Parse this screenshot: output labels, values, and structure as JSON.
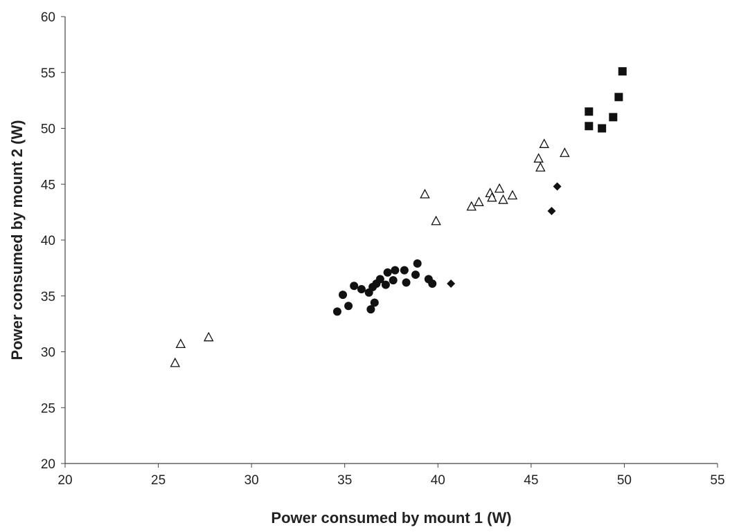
{
  "chart_data": {
    "type": "scatter",
    "title": "",
    "xlabel": "Power consumed by mount 1 (W)",
    "ylabel": "Power consumed by mount 2 (W)",
    "xlim": [
      20,
      55
    ],
    "ylim": [
      20,
      60
    ],
    "xticks": [
      "20",
      "25",
      "30",
      "35",
      "40",
      "45",
      "50",
      "55"
    ],
    "yticks": [
      "20",
      "25",
      "30",
      "35",
      "40",
      "45",
      "50",
      "55",
      "60"
    ],
    "grid": false,
    "legend": "none",
    "series": [
      {
        "marker": "open-triangle",
        "color": "#111111",
        "points": [
          [
            25.9,
            29.0
          ],
          [
            26.2,
            30.7
          ],
          [
            27.7,
            31.3
          ],
          [
            39.3,
            44.1
          ],
          [
            39.9,
            41.7
          ],
          [
            41.8,
            43.0
          ],
          [
            42.2,
            43.4
          ],
          [
            42.8,
            44.2
          ],
          [
            42.9,
            43.8
          ],
          [
            43.3,
            44.6
          ],
          [
            43.5,
            43.6
          ],
          [
            44.0,
            44.0
          ],
          [
            45.4,
            47.3
          ],
          [
            45.5,
            46.5
          ],
          [
            45.7,
            48.6
          ],
          [
            46.8,
            47.8
          ]
        ]
      },
      {
        "marker": "filled-circle",
        "color": "#111111",
        "points": [
          [
            34.6,
            33.6
          ],
          [
            34.9,
            35.1
          ],
          [
            35.2,
            34.1
          ],
          [
            35.5,
            35.9
          ],
          [
            35.9,
            35.6
          ],
          [
            36.3,
            35.3
          ],
          [
            36.4,
            33.8
          ],
          [
            36.5,
            35.8
          ],
          [
            36.6,
            34.4
          ],
          [
            36.7,
            36.1
          ],
          [
            36.9,
            36.5
          ],
          [
            37.2,
            36.0
          ],
          [
            37.3,
            37.1
          ],
          [
            37.6,
            36.4
          ],
          [
            37.7,
            37.3
          ],
          [
            38.2,
            37.3
          ],
          [
            38.3,
            36.2
          ],
          [
            38.8,
            36.9
          ],
          [
            38.9,
            37.9
          ],
          [
            39.5,
            36.5
          ],
          [
            39.7,
            36.1
          ]
        ]
      },
      {
        "marker": "filled-diamond",
        "color": "#111111",
        "points": [
          [
            40.7,
            36.1
          ],
          [
            46.1,
            42.6
          ],
          [
            46.4,
            44.8
          ]
        ]
      },
      {
        "marker": "filled-square",
        "color": "#111111",
        "points": [
          [
            48.1,
            50.2
          ],
          [
            48.1,
            51.5
          ],
          [
            48.8,
            50.0
          ],
          [
            49.4,
            51.0
          ],
          [
            49.7,
            52.8
          ],
          [
            49.9,
            55.1
          ]
        ]
      }
    ]
  }
}
